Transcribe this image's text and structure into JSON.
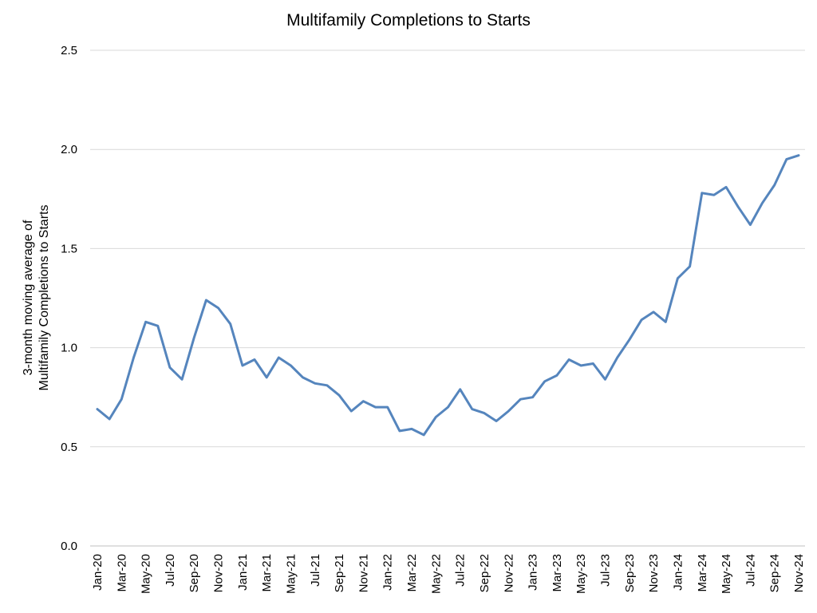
{
  "chart_data": {
    "type": "line",
    "title": "Multifamily Completions to Starts",
    "ylabel": [
      "3-month moving average of",
      "Multifamily Completions to Starts"
    ],
    "xlabel": "",
    "ylim": [
      0,
      2.5
    ],
    "yticks": [
      "0.0",
      "0.5",
      "1.0",
      "1.5",
      "2.0",
      "2.5"
    ],
    "grid": true,
    "legend": "none",
    "line_color": "#5585bd",
    "x": [
      "Jan-20",
      "Feb-20",
      "Mar-20",
      "Apr-20",
      "May-20",
      "Jun-20",
      "Jul-20",
      "Aug-20",
      "Sep-20",
      "Oct-20",
      "Nov-20",
      "Dec-20",
      "Jan-21",
      "Feb-21",
      "Mar-21",
      "Apr-21",
      "May-21",
      "Jun-21",
      "Jul-21",
      "Aug-21",
      "Sep-21",
      "Oct-21",
      "Nov-21",
      "Dec-21",
      "Jan-22",
      "Feb-22",
      "Mar-22",
      "Apr-22",
      "May-22",
      "Jun-22",
      "Jul-22",
      "Aug-22",
      "Sep-22",
      "Oct-22",
      "Nov-22",
      "Dec-22",
      "Jan-23",
      "Feb-23",
      "Mar-23",
      "Apr-23",
      "May-23",
      "Jun-23",
      "Jul-23",
      "Aug-23",
      "Sep-23",
      "Oct-23",
      "Nov-23",
      "Dec-23",
      "Jan-24",
      "Feb-24",
      "Mar-24",
      "Apr-24",
      "May-24",
      "Jun-24",
      "Jul-24",
      "Aug-24",
      "Sep-24",
      "Oct-24",
      "Nov-24"
    ],
    "xtick_labels": [
      "Jan-20",
      "Mar-20",
      "May-20",
      "Jul-20",
      "Sep-20",
      "Nov-20",
      "Jan-21",
      "Mar-21",
      "May-21",
      "Jul-21",
      "Sep-21",
      "Nov-21",
      "Jan-22",
      "Mar-22",
      "May-22",
      "Jul-22",
      "Sep-22",
      "Nov-22",
      "Jan-23",
      "Mar-23",
      "May-23",
      "Jul-23",
      "Sep-23",
      "Nov-23",
      "Jan-24",
      "Mar-24",
      "May-24",
      "Jul-24",
      "Sep-24",
      "Nov-24"
    ],
    "series": [
      {
        "values": [
          0.69,
          0.64,
          0.74,
          0.95,
          1.13,
          1.11,
          0.9,
          0.84,
          1.05,
          1.24,
          1.2,
          1.12,
          0.91,
          0.94,
          0.85,
          0.95,
          0.91,
          0.85,
          0.82,
          0.81,
          0.76,
          0.68,
          0.73,
          0.7,
          0.7,
          0.58,
          0.59,
          0.56,
          0.65,
          0.7,
          0.79,
          0.69,
          0.67,
          0.63,
          0.68,
          0.74,
          0.75,
          0.83,
          0.86,
          0.94,
          0.91,
          0.92,
          0.84,
          0.95,
          1.04,
          1.14,
          1.18,
          1.13,
          1.35,
          1.41,
          1.78,
          1.77,
          1.81,
          1.71,
          1.62,
          1.73,
          1.82,
          1.95,
          1.97
        ]
      }
    ]
  }
}
